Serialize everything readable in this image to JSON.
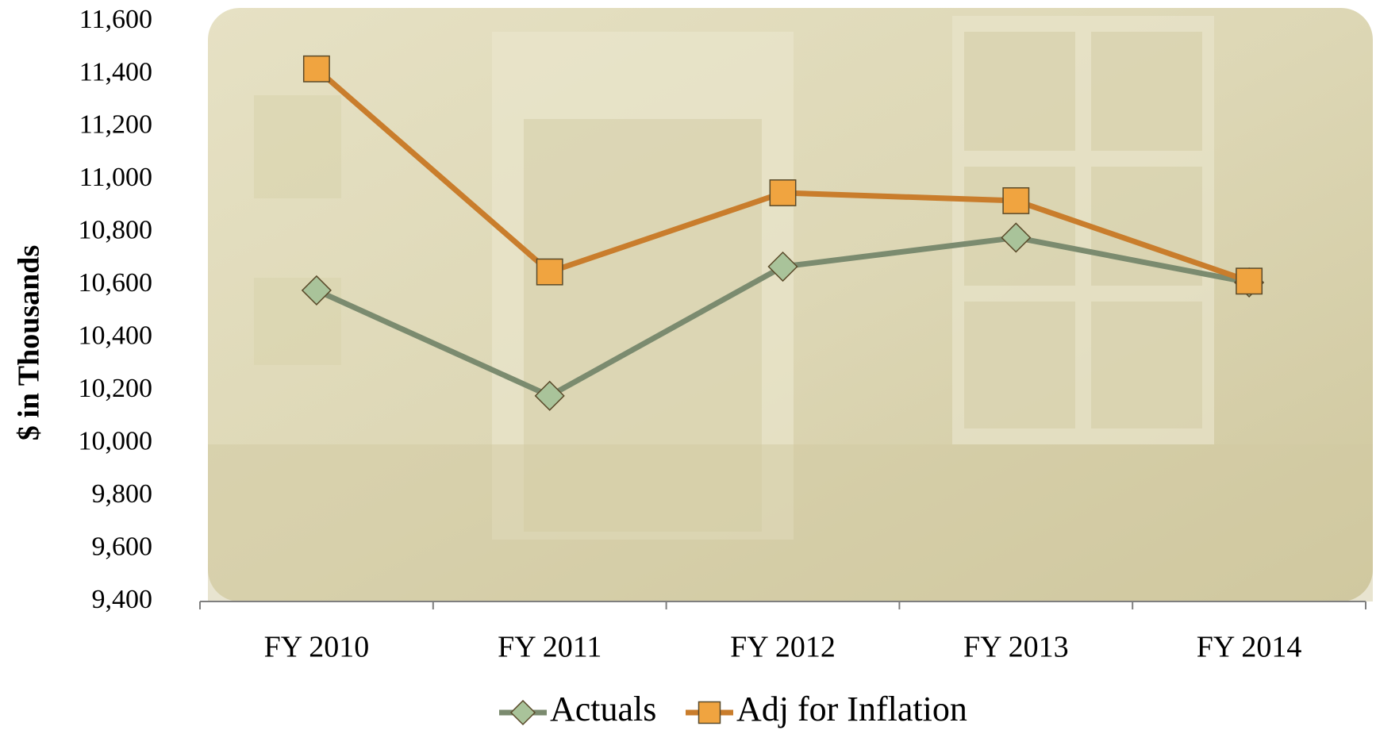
{
  "chart_data": {
    "type": "line",
    "y_label": "$ in Thousands",
    "categories": [
      "FY 2010",
      "FY 2011",
      "FY 2012",
      "FY 2013",
      "FY 2014"
    ],
    "series": [
      {
        "name": "Actuals",
        "color": "#7b8b6f",
        "marker": "diamond",
        "values": [
          10580,
          10180,
          10670,
          10780,
          10610
        ]
      },
      {
        "name": "Adj for Inflation",
        "color": "#c97d2c",
        "marker": "square",
        "values": [
          11420,
          10650,
          10950,
          10920,
          10615
        ]
      }
    ],
    "ylim": [
      9400,
      11600
    ],
    "yticks": [
      {
        "value": 9400,
        "label": "9,400"
      },
      {
        "value": 9600,
        "label": "9,600"
      },
      {
        "value": 9800,
        "label": "9,800"
      },
      {
        "value": 10000,
        "label": "10,000"
      },
      {
        "value": 10200,
        "label": "10,200"
      },
      {
        "value": 10400,
        "label": "10,400"
      },
      {
        "value": 10600,
        "label": "10,600"
      },
      {
        "value": 10800,
        "label": "10,800"
      },
      {
        "value": 11000,
        "label": "11,000"
      },
      {
        "value": 11200,
        "label": "11,200"
      },
      {
        "value": 11400,
        "label": "11,400"
      },
      {
        "value": 11600,
        "label": "11,600"
      }
    ],
    "legend": "bottom"
  }
}
